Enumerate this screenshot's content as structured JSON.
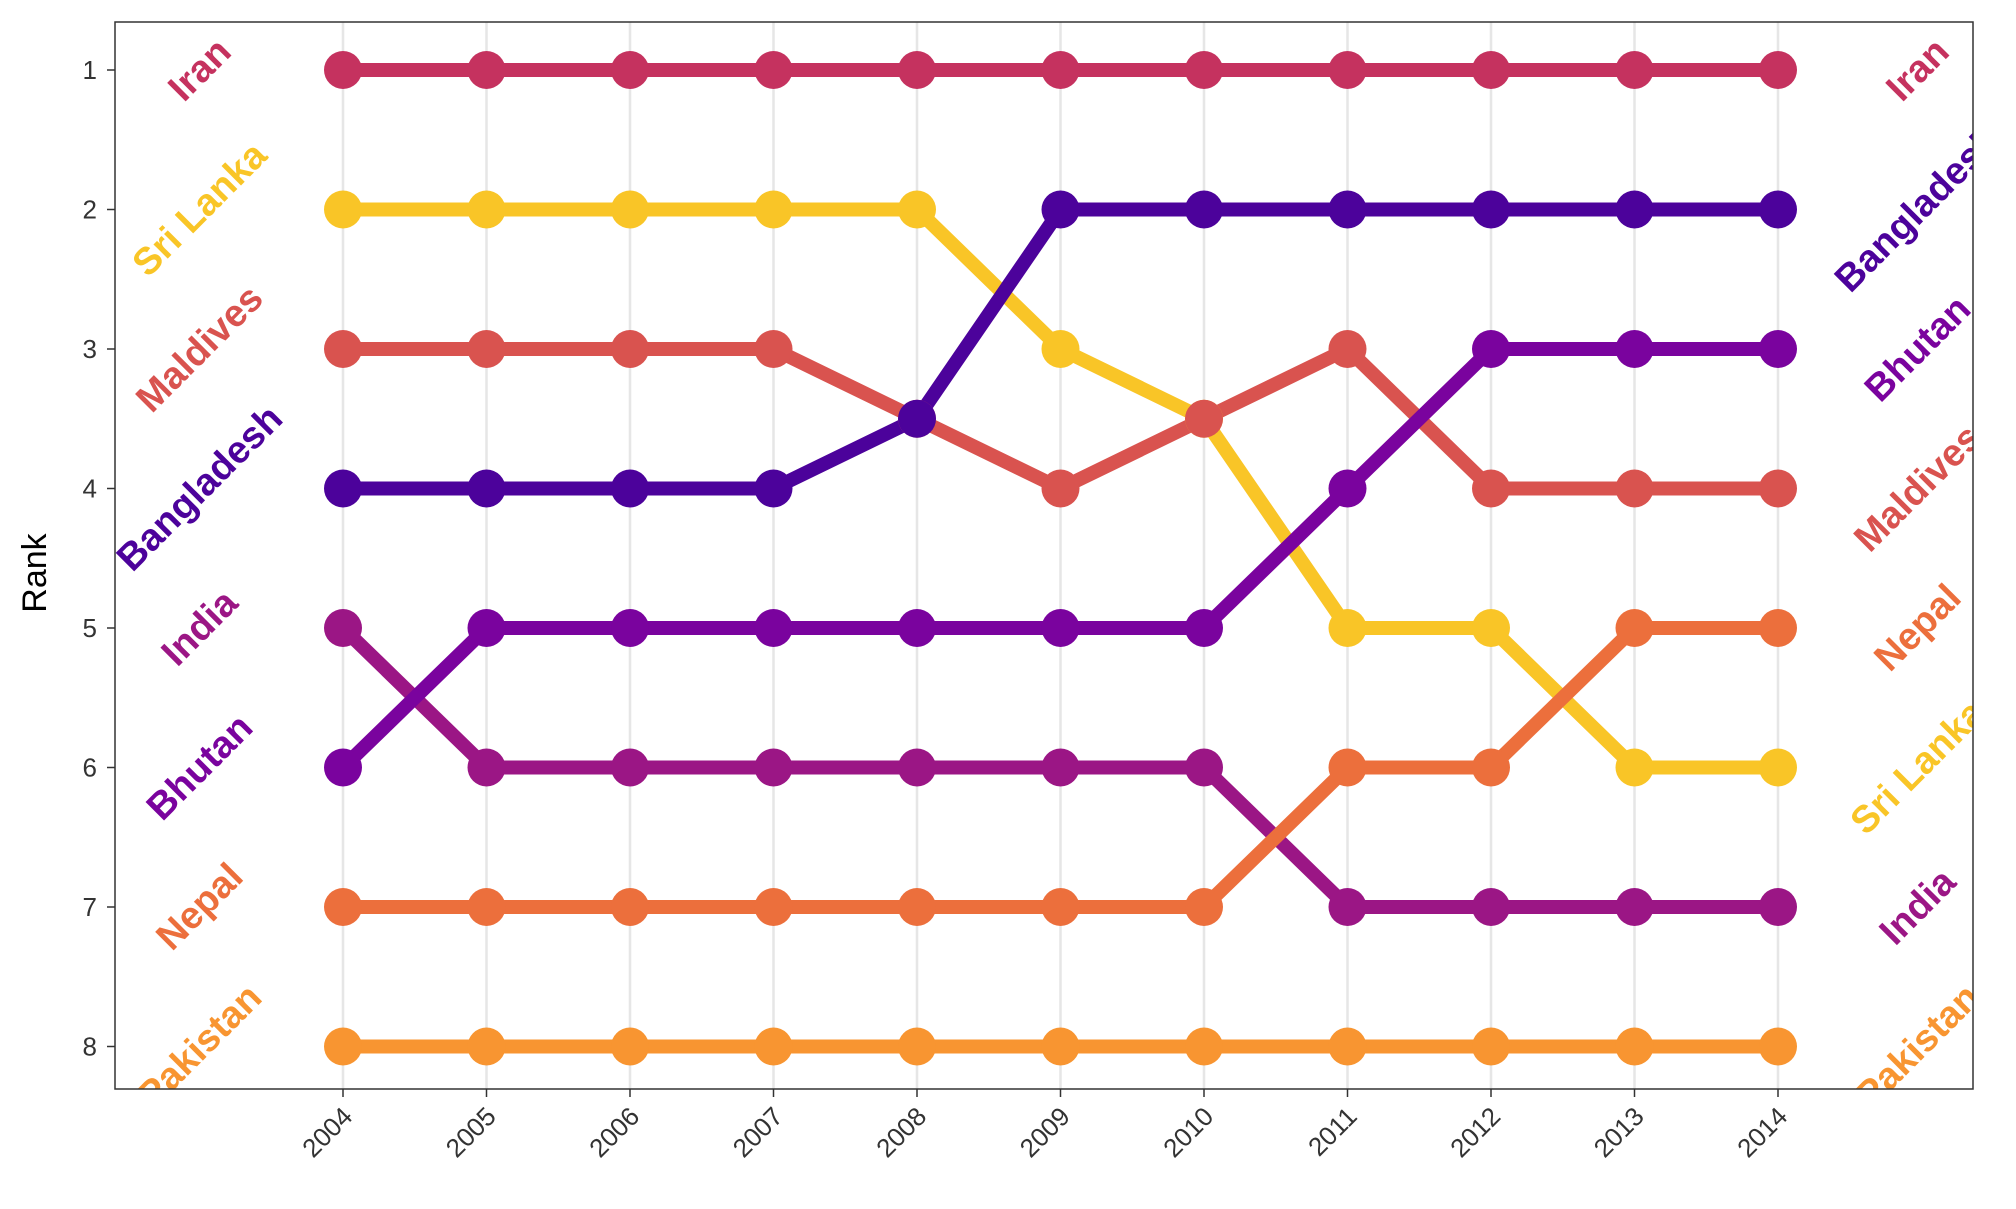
{
  "chart_data": {
    "type": "line",
    "title": "",
    "xlabel": "",
    "ylabel": "Rank",
    "x": [
      "2004",
      "2005",
      "2006",
      "2007",
      "2008",
      "2009",
      "2010",
      "2011",
      "2012",
      "2013",
      "2014"
    ],
    "y_ticks": [
      "1",
      "2",
      "3",
      "4",
      "5",
      "6",
      "7",
      "8"
    ],
    "ylim": [
      1,
      8
    ],
    "y_reversed": true,
    "grid": "vertical",
    "legend": "none (direct labels at both ends)",
    "series": [
      {
        "name": "Iran",
        "color": "#c5325f",
        "values": [
          1,
          1,
          1,
          1,
          1,
          1,
          1,
          1,
          1,
          1,
          1
        ]
      },
      {
        "name": "Sri Lanka",
        "color": "#f9c527",
        "values": [
          2,
          2,
          2,
          2,
          2,
          3,
          3.5,
          5,
          5,
          6,
          6
        ]
      },
      {
        "name": "Maldives",
        "color": "#d9534f",
        "values": [
          3,
          3,
          3,
          3,
          3.5,
          4,
          3.5,
          3,
          4,
          4,
          4
        ]
      },
      {
        "name": "Bangladesh",
        "color": "#4c029b",
        "values": [
          4,
          4,
          4,
          4,
          3.5,
          2,
          2,
          2,
          2,
          2,
          2
        ]
      },
      {
        "name": "India",
        "color": "#9b1685",
        "values": [
          5,
          6,
          6,
          6,
          6,
          6,
          6,
          7,
          7,
          7,
          7
        ]
      },
      {
        "name": "Bhutan",
        "color": "#7a039e",
        "values": [
          6,
          5,
          5,
          5,
          5,
          5,
          5,
          4,
          3,
          3,
          3
        ]
      },
      {
        "name": "Nepal",
        "color": "#ec6f3c",
        "values": [
          7,
          7,
          7,
          7,
          7,
          7,
          7,
          6,
          6,
          5,
          5
        ]
      },
      {
        "name": "Pakistan",
        "color": "#f89531",
        "values": [
          8,
          8,
          8,
          8,
          8,
          8,
          8,
          8,
          8,
          8,
          8
        ]
      }
    ],
    "left_labels": [
      "Iran",
      "Sri Lanka",
      "Maldives",
      "Bangladesh",
      "India",
      "Bhutan",
      "Nepal",
      "Pakistan"
    ],
    "right_labels": [
      "Iran",
      "Bangladesh",
      "Bhutan",
      "Maldives",
      "Nepal",
      "Sri Lanka",
      "India",
      "Pakistan"
    ]
  }
}
